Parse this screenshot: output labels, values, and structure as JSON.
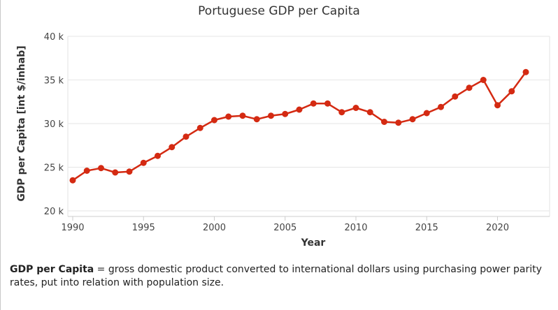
{
  "chart_data": {
    "type": "line",
    "title": "Portuguese GDP per Capita",
    "xlabel": "Year",
    "ylabel": "GDP per Capita [int $/inhab]",
    "xlim": [
      1990,
      2022
    ],
    "ylim": [
      20000,
      40000
    ],
    "x_ticks": [
      1990,
      1995,
      2000,
      2005,
      2010,
      2015,
      2020
    ],
    "y_ticks": [
      {
        "value": 20000,
        "label": "20 k"
      },
      {
        "value": 25000,
        "label": "25 k"
      },
      {
        "value": 30000,
        "label": "30 k"
      },
      {
        "value": 35000,
        "label": "35 k"
      },
      {
        "value": 40000,
        "label": "40 k"
      }
    ],
    "grid": "horizontal",
    "series": [
      {
        "color": "#d42a12",
        "points": [
          [
            1990,
            23500
          ],
          [
            1991,
            24600
          ],
          [
            1992,
            24900
          ],
          [
            1993,
            24400
          ],
          [
            1994,
            24500
          ],
          [
            1995,
            25500
          ],
          [
            1996,
            26300
          ],
          [
            1997,
            27300
          ],
          [
            1998,
            28500
          ],
          [
            1999,
            29500
          ],
          [
            2000,
            30400
          ],
          [
            2001,
            30800
          ],
          [
            2002,
            30900
          ],
          [
            2003,
            30500
          ],
          [
            2004,
            30900
          ],
          [
            2005,
            31100
          ],
          [
            2006,
            31600
          ],
          [
            2007,
            32300
          ],
          [
            2008,
            32300
          ],
          [
            2009,
            31300
          ],
          [
            2010,
            31800
          ],
          [
            2011,
            31300
          ],
          [
            2012,
            30200
          ],
          [
            2013,
            30100
          ],
          [
            2014,
            30500
          ],
          [
            2015,
            31200
          ],
          [
            2016,
            31900
          ],
          [
            2017,
            33100
          ],
          [
            2018,
            34100
          ],
          [
            2019,
            35000
          ],
          [
            2020,
            32100
          ],
          [
            2021,
            33700
          ],
          [
            2022,
            35900
          ]
        ]
      }
    ]
  },
  "note": {
    "term": "GDP per Capita",
    "definition": " = gross domestic product converted to international dollars using purchasing power parity rates, put into relation with population size."
  }
}
